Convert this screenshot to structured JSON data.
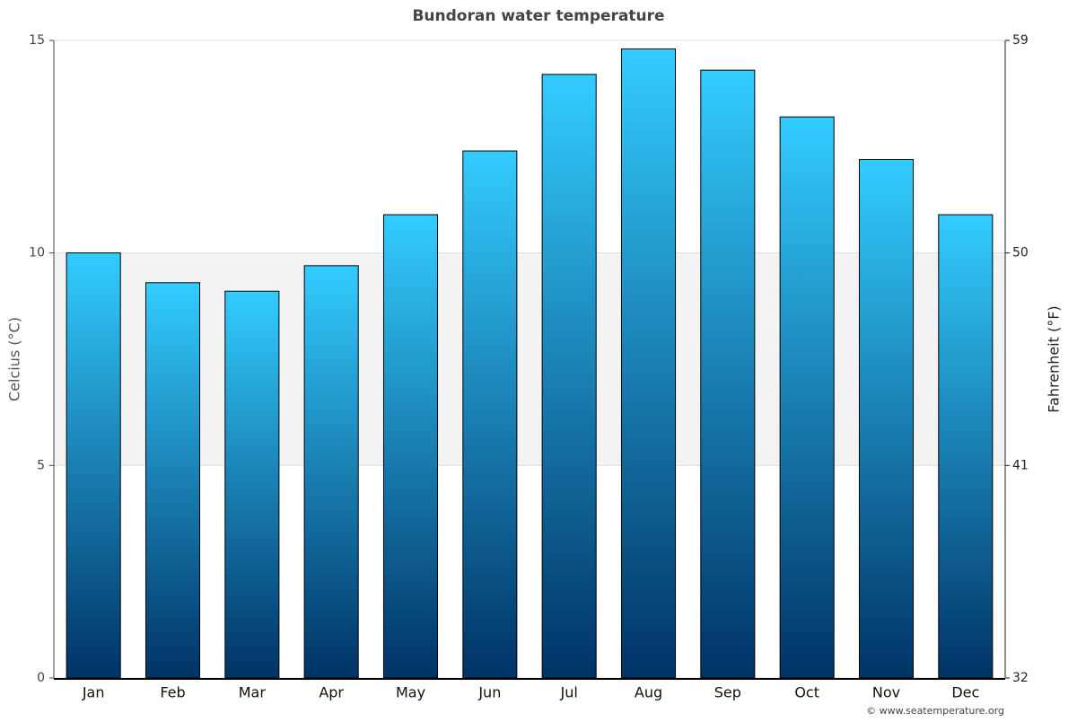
{
  "chart_data": {
    "type": "bar",
    "title": "Bundoran water temperature",
    "y_label": "Celcius (°C)",
    "y2_label": "Fahrenheit (°F)",
    "credit": "© www.seatemperature.org",
    "categories": [
      "Jan",
      "Feb",
      "Mar",
      "Apr",
      "May",
      "Jun",
      "Jul",
      "Aug",
      "Sep",
      "Oct",
      "Nov",
      "Dec"
    ],
    "values": [
      10.0,
      9.3,
      9.1,
      9.7,
      10.9,
      12.4,
      14.2,
      14.8,
      14.3,
      13.2,
      12.2,
      10.9
    ],
    "colors": [
      "#33ccff",
      "#003366"
    ],
    "ylim": [
      0,
      15
    ],
    "yticks": [
      0,
      5,
      10,
      15
    ],
    "y2lim": [
      32,
      59
    ],
    "y2ticks": [
      32,
      41,
      50,
      59
    ],
    "shaded_band": [
      5,
      10
    ],
    "grid": true
  }
}
